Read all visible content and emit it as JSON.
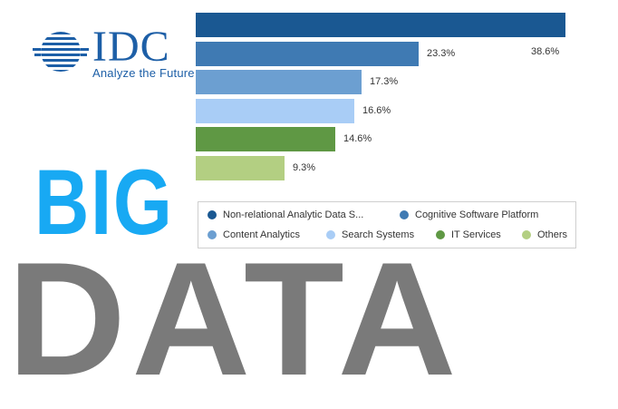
{
  "logo": {
    "wordmark": "IDC",
    "tagline": "Analyze the Future"
  },
  "headline": {
    "line1": "BIG",
    "line2": "DATA"
  },
  "colors": {
    "idc_blue": "#1d5fa7",
    "big_blue": "#18a9f3",
    "data_gray": "#7a7a7a"
  },
  "chart_data": {
    "type": "bar",
    "orientation": "horizontal",
    "categories": [
      "Non-relational Analytic Data S...",
      "Cognitive Software Platform",
      "Content Analytics",
      "Search Systems",
      "IT Services",
      "Others"
    ],
    "values": [
      38.6,
      23.3,
      17.3,
      16.6,
      14.6,
      9.3
    ],
    "value_labels": [
      "38.6%",
      "23.3%",
      "17.3%",
      "16.6%",
      "14.6%",
      "9.3%"
    ],
    "colors": [
      "#1a5892",
      "#3f7ab3",
      "#6c9fd1",
      "#a9cdf6",
      "#5f9844",
      "#b3cf82"
    ],
    "xlim": [
      0,
      38.6
    ],
    "legend_position": "bottom",
    "grid": false
  }
}
